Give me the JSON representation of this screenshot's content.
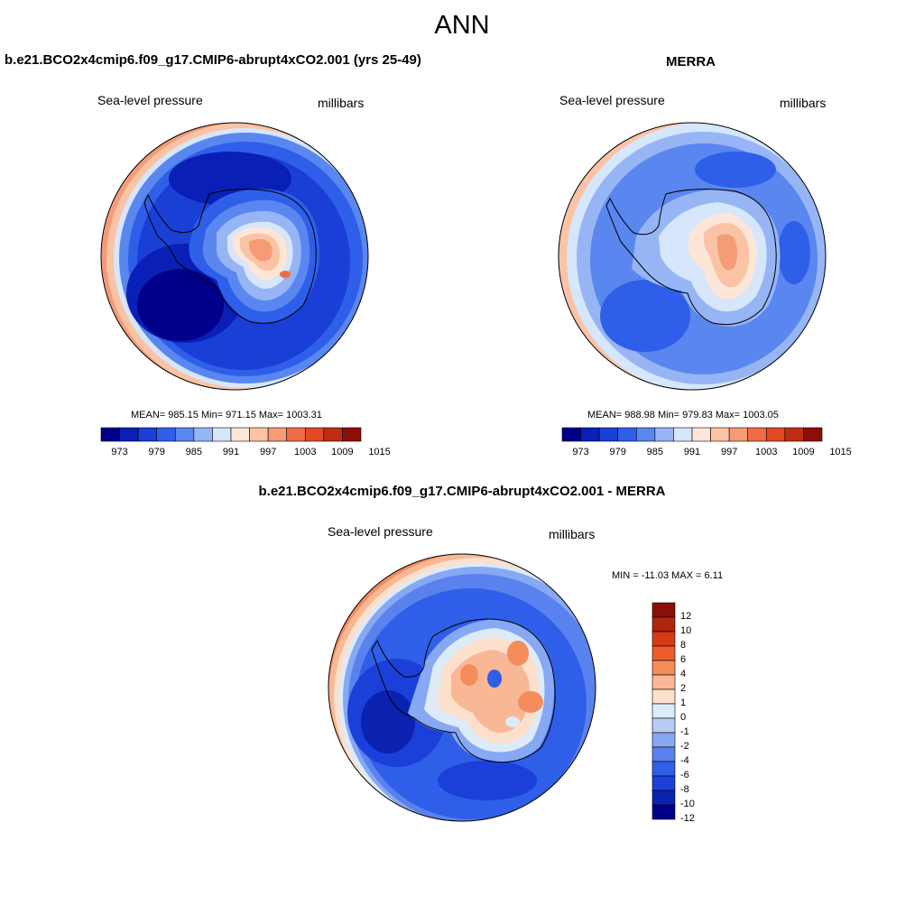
{
  "figure": {
    "title": "ANN"
  },
  "panels": [
    {
      "id": "model",
      "title": "b.e21.BCO2x4cmip6.f09_g17.CMIP6-abrupt4xCO2.001 (yrs 25-49)",
      "left_label": "Sea-level pressure",
      "right_label": "millibars",
      "stats": "MEAN= 985.15  Min= 971.15  Max= 1003.31",
      "colorbar_ticks": [
        "973",
        "979",
        "985",
        "991",
        "997",
        "1003",
        "1009",
        "1015"
      ]
    },
    {
      "id": "obs",
      "title": "MERRA",
      "left_label": "Sea-level pressure",
      "right_label": "millibars",
      "stats": "MEAN= 988.98  Min= 979.83  Max= 1003.05",
      "colorbar_ticks": [
        "973",
        "979",
        "985",
        "991",
        "997",
        "1003",
        "1009",
        "1015"
      ]
    },
    {
      "id": "diff",
      "title": "b.e21.BCO2x4cmip6.f09_g17.CMIP6-abrupt4xCO2.001 - MERRA",
      "left_label": "Sea-level pressure",
      "right_label": "millibars",
      "stats": "MIN = -11.03 MAX =   6.11",
      "colorbar_ticks": [
        "12",
        "10",
        "8",
        "6",
        "4",
        "2",
        "1",
        "0",
        "-1",
        "-2",
        "-4",
        "-6",
        "-8",
        "-10",
        "-12"
      ]
    }
  ],
  "palettes": {
    "abs": [
      "#00008b",
      "#0a1fb5",
      "#1a3fd6",
      "#2f5fe8",
      "#5a86f0",
      "#97b5f5",
      "#d6e6fb",
      "#fde6d8",
      "#fbc3a6",
      "#f59b76",
      "#ef6b45",
      "#e24a25",
      "#c12d14",
      "#8b0f08"
    ],
    "diff": [
      "#8b0f08",
      "#b0250e",
      "#d63a17",
      "#ef5c2c",
      "#f58c5c",
      "#f9b895",
      "#fde0cc",
      "#ddeaf8",
      "#b7cdf6",
      "#87a8f2",
      "#5a82ee",
      "#2f5fe8",
      "#1a40d9",
      "#0b22b0",
      "#00008b"
    ]
  }
}
